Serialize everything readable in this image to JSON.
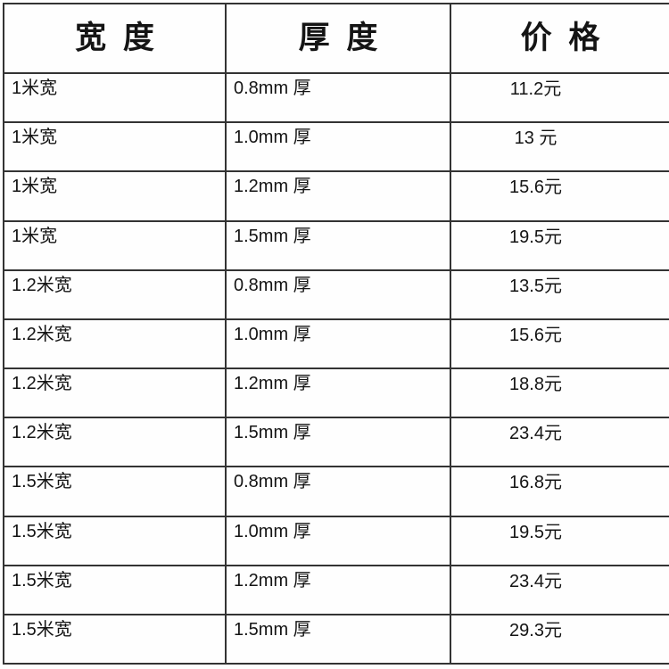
{
  "colors": {
    "border": "#333333",
    "text": "#141414",
    "background": "#fefefe"
  },
  "table": {
    "headers": {
      "width": "宽 度",
      "thickness": "厚 度",
      "price": "价 格"
    },
    "rows": [
      {
        "width": "1米宽",
        "thickness": "0.8mm 厚",
        "price": "11.2元"
      },
      {
        "width": "1米宽",
        "thickness": "1.0mm 厚",
        "price": "13 元"
      },
      {
        "width": "1米宽",
        "thickness": "1.2mm 厚",
        "price": "15.6元"
      },
      {
        "width": "1米宽",
        "thickness": "1.5mm 厚",
        "price": "19.5元"
      },
      {
        "width": "1.2米宽",
        "thickness": "0.8mm 厚",
        "price": "13.5元"
      },
      {
        "width": "1.2米宽",
        "thickness": "1.0mm 厚",
        "price": "15.6元"
      },
      {
        "width": "1.2米宽",
        "thickness": "1.2mm 厚",
        "price": "18.8元"
      },
      {
        "width": "1.2米宽",
        "thickness": "1.5mm 厚",
        "price": "23.4元"
      },
      {
        "width": "1.5米宽",
        "thickness": "0.8mm 厚",
        "price": "16.8元"
      },
      {
        "width": "1.5米宽",
        "thickness": "1.0mm 厚",
        "price": "19.5元"
      },
      {
        "width": "1.5米宽",
        "thickness": "1.2mm 厚",
        "price": "23.4元"
      },
      {
        "width": "1.5米宽",
        "thickness": "1.5mm 厚",
        "price": "29.3元"
      }
    ]
  }
}
